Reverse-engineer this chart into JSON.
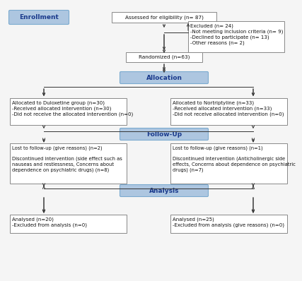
{
  "bg_color": "#f5f5f5",
  "box_border_color": "#888888",
  "blue_fill": "#adc6e0",
  "blue_border": "#7aaacf",
  "blue_text_color": "#1a3a8c",
  "black_text": "#111111",
  "arrow_color": "#333333",
  "enrollment_label": "Enrollment",
  "allocation_label": "Allocation",
  "followup_label": "Follow-Up",
  "analysis_label": "Analysis",
  "assess_text": "Assessed for eligibility (n= 87)",
  "excluded_text": "Excluded (n= 24)\n-Not meeting inclusion criteria (n= 9)\n-Declined to participate (n= 13)\n-Other reasons (n= 2)",
  "randomized_text": "Randomized (n=63)",
  "dulox_alloc_text": "Allocated to Duloxetine group (n=30)\n-Received allocated intervention (n=30)\n-Did not receive the allocated intervention (n=0)",
  "nort_alloc_text": "Allocated to Nortriptyline (n=33)\n-Received allocated intervention (n=33)\n-Did not receive allocated intervention (n=0)",
  "dulox_followup_text": "Lost to follow-up (give reasons) (n=2)\n\nDiscontinued intervention (side effect such as\nnauseas and restlessness, Concerns about\ndependence on psychiatric drugs) (n=8)",
  "nort_followup_text": "Lost to follow-up (give reasons) (n=1)\n\nDiscontinued intervention (Anticholinergic side\neffects, Concerns about dependence on psychiatric\ndrugs) (n=7)",
  "dulox_analysis_text": "Analysed (n=20)\n-Excluded from analysis (n=0)",
  "nort_analysis_text": "Analysed (n=25)\n-Excluded from analysis (give reasons) (n=0)"
}
